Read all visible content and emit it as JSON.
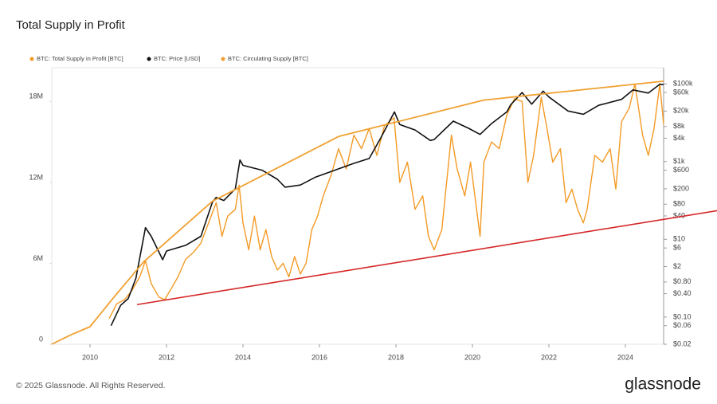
{
  "chart_data": {
    "type": "line",
    "title": "Total Supply in Profit",
    "footer": "© 2025 Glassnode. All Rights Reserved.",
    "brand": "glassnode",
    "xlim": [
      2009,
      2025
    ],
    "xticks": [
      2010,
      2012,
      2014,
      2016,
      2018,
      2020,
      2022,
      2024
    ],
    "ylim": [
      0,
      20.5
    ],
    "yticks": [
      0,
      {
        "value": 6,
        "label": "6M"
      },
      {
        "value": 12,
        "label": "12M"
      },
      {
        "value": 18,
        "label": "18M"
      }
    ],
    "y2lim": [
      0.02,
      260000
    ],
    "y2log": true,
    "y2ticks": [
      {
        "value": 0.02,
        "label": "$0.02"
      },
      {
        "value": 0.06,
        "label": "$0.06"
      },
      {
        "value": 0.1,
        "label": "$0.10"
      },
      {
        "value": 0.4,
        "label": "$0.40"
      },
      {
        "value": 0.8,
        "label": "$0.80"
      },
      {
        "value": 2,
        "label": "$2"
      },
      {
        "value": 6,
        "label": "$6"
      },
      {
        "value": 10,
        "label": "$10"
      },
      {
        "value": 40,
        "label": "$40"
      },
      {
        "value": 80,
        "label": "$80"
      },
      {
        "value": 200,
        "label": "$200"
      },
      {
        "value": 600,
        "label": "$600"
      },
      {
        "value": 1000,
        "label": "$1k"
      },
      {
        "value": 4000,
        "label": "$4k"
      },
      {
        "value": 8000,
        "label": "$8k"
      },
      {
        "value": 20000,
        "label": "$20k"
      },
      {
        "value": 60000,
        "label": "$60k"
      },
      {
        "value": 100000,
        "label": "$100k"
      }
    ],
    "series": [
      {
        "name": "BTC: Total Supply in Profit [BTC]",
        "color": "#f39a25",
        "width": 1.4,
        "x": [
          2010.5,
          2010.7,
          2010.9,
          2011.1,
          2011.3,
          2011.45,
          2011.6,
          2011.8,
          2011.95,
          2012.1,
          2012.3,
          2012.5,
          2012.7,
          2012.9,
          2013.1,
          2013.3,
          2013.45,
          2013.6,
          2013.8,
          2013.9,
          2014.0,
          2014.15,
          2014.3,
          2014.45,
          2014.6,
          2014.75,
          2014.9,
          2015.05,
          2015.2,
          2015.35,
          2015.5,
          2015.65,
          2015.8,
          2015.95,
          2016.1,
          2016.3,
          2016.5,
          2016.7,
          2016.9,
          2017.1,
          2017.3,
          2017.5,
          2017.7,
          2017.95,
          2018.1,
          2018.3,
          2018.5,
          2018.7,
          2018.85,
          2019.0,
          2019.2,
          2019.45,
          2019.6,
          2019.8,
          2019.95,
          2020.2,
          2020.3,
          2020.5,
          2020.7,
          2020.9,
          2021.1,
          2021.3,
          2021.45,
          2021.6,
          2021.8,
          2021.95,
          2022.1,
          2022.3,
          2022.45,
          2022.6,
          2022.75,
          2022.9,
          2023.0,
          2023.2,
          2023.4,
          2023.6,
          2023.75,
          2023.9,
          2024.1,
          2024.25,
          2024.45,
          2024.6,
          2024.75,
          2024.9,
          2025.0
        ],
        "values": [
          1.9,
          3.0,
          3.3,
          4.0,
          5.0,
          6.2,
          4.5,
          3.5,
          3.3,
          4.0,
          5.0,
          6.3,
          6.8,
          7.5,
          9.0,
          10.5,
          8.0,
          9.5,
          10.0,
          11.8,
          9.0,
          7.0,
          9.5,
          7.0,
          8.5,
          6.5,
          5.5,
          6.0,
          5.0,
          6.5,
          5.2,
          6.0,
          8.5,
          9.5,
          11.0,
          12.5,
          14.5,
          13.0,
          15.5,
          14.5,
          16.0,
          14.0,
          16.2,
          16.8,
          12.0,
          13.5,
          10.0,
          11.0,
          8.0,
          7.0,
          8.5,
          15.5,
          13.0,
          11.0,
          13.5,
          8.0,
          13.5,
          15.0,
          14.5,
          17.0,
          18.2,
          18.0,
          12.0,
          14.0,
          18.3,
          16.0,
          13.5,
          14.5,
          10.5,
          11.5,
          10.0,
          9.0,
          10.0,
          14.0,
          13.5,
          14.5,
          11.5,
          16.5,
          17.5,
          19.3,
          15.5,
          14.0,
          16.0,
          19.3,
          16.3
        ]
      },
      {
        "name": "BTC: Price [USD]",
        "color": "#111111",
        "width": 1.6,
        "axis": "y2",
        "x": [
          2010.55,
          2010.8,
          2011.0,
          2011.2,
          2011.45,
          2011.6,
          2011.9,
          2012.0,
          2012.5,
          2012.9,
          2013.2,
          2013.3,
          2013.5,
          2013.8,
          2013.92,
          2014.0,
          2014.5,
          2014.9,
          2015.1,
          2015.5,
          2015.9,
          2016.5,
          2016.9,
          2017.3,
          2017.6,
          2017.96,
          2018.1,
          2018.5,
          2018.9,
          2019.0,
          2019.5,
          2019.9,
          2020.2,
          2020.5,
          2020.9,
          2021.0,
          2021.3,
          2021.55,
          2021.85,
          2022.0,
          2022.5,
          2022.9,
          2023.3,
          2023.9,
          2024.2,
          2024.6,
          2024.9,
          2025.0
        ],
        "values": [
          0.06,
          0.2,
          0.3,
          1,
          20,
          12,
          3,
          5,
          7,
          12,
          90,
          120,
          100,
          200,
          1100,
          800,
          600,
          350,
          220,
          250,
          400,
          650,
          900,
          1200,
          4000,
          19000,
          9000,
          6500,
          3500,
          3700,
          11000,
          7200,
          5000,
          9500,
          19000,
          29000,
          60000,
          30000,
          65000,
          46000,
          20000,
          16500,
          28000,
          40000,
          70000,
          58000,
          98000,
          95000
        ]
      },
      {
        "name": "BTC: Circulating Supply [BTC]",
        "color": "#f0a030",
        "width": 1.8,
        "x": [
          2009.0,
          2009.5,
          2010.0,
          2010.6,
          2011.4,
          2013.2,
          2016.5,
          2020.3,
          2025.0
        ],
        "values": [
          0,
          0.7,
          1.3,
          3.4,
          6.1,
          10.6,
          15.4,
          18.1,
          19.5
        ]
      }
    ],
    "trend_line": {
      "color": "#d62728",
      "x": [
        2011.23,
        2026.4
      ],
      "values": [
        2.94,
        9.9
      ]
    }
  }
}
